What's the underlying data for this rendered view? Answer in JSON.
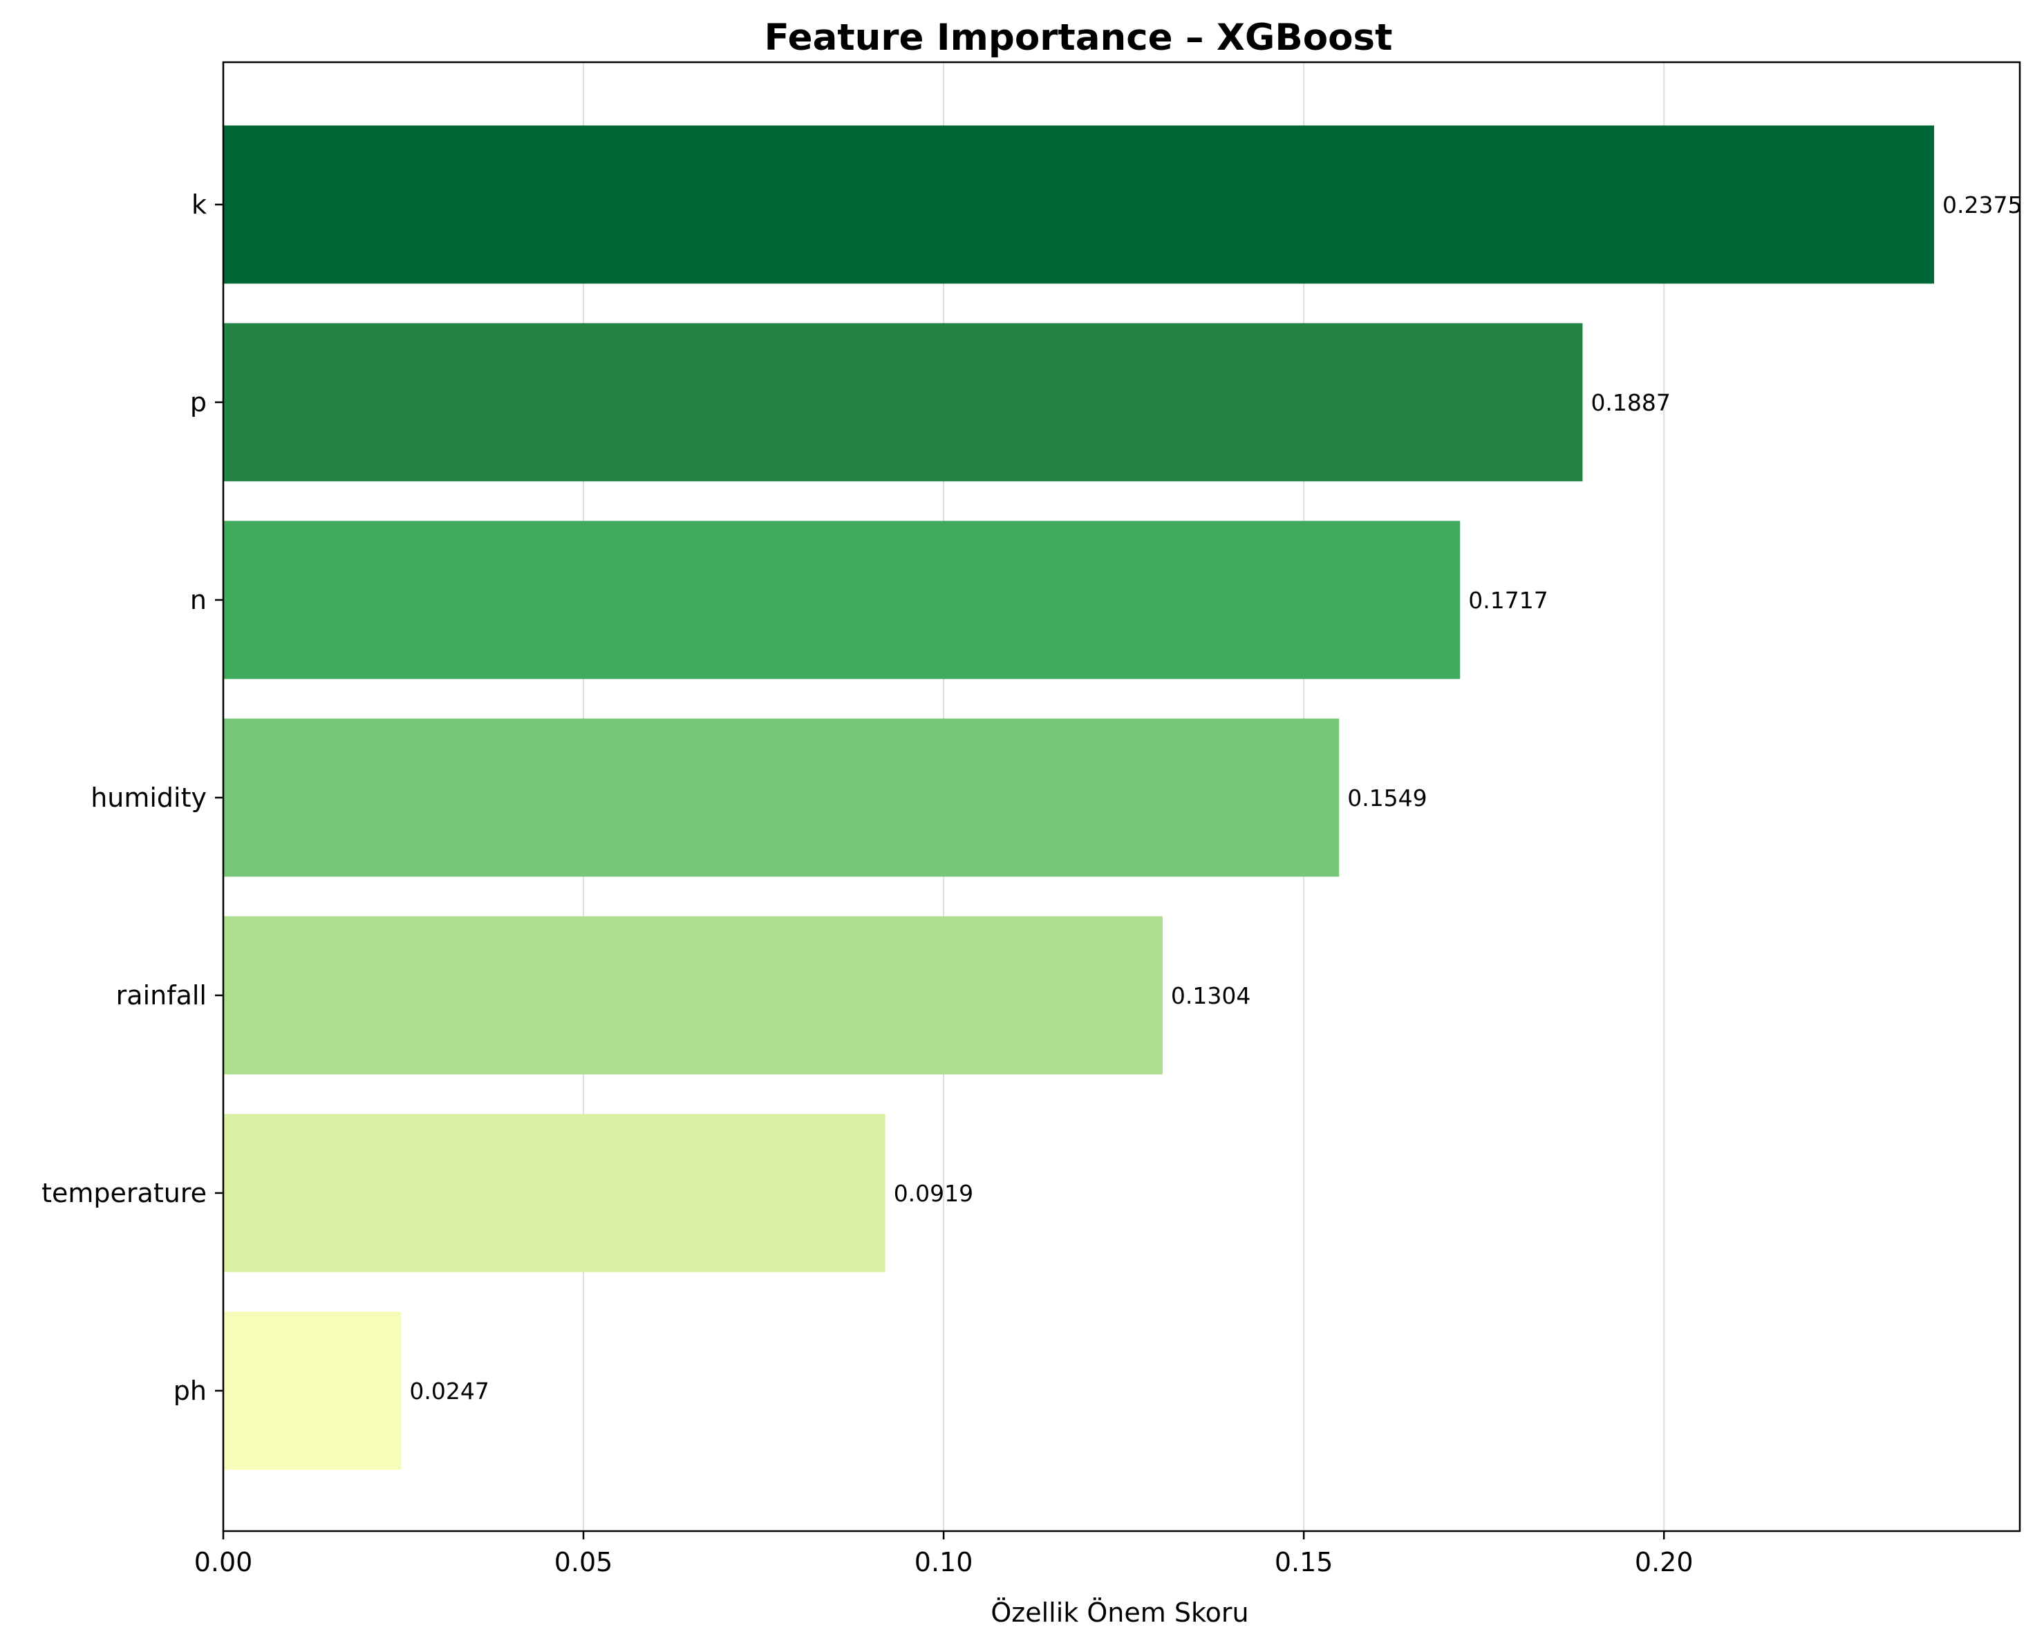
{
  "chart_data": {
    "type": "bar",
    "orientation": "horizontal",
    "title": "Feature Importance – XGBoost",
    "xlabel": "Özellik Önem Skoru",
    "ylabel": "",
    "categories": [
      "k",
      "p",
      "n",
      "humidity",
      "rainfall",
      "temperature",
      "ph"
    ],
    "values": [
      0.2375,
      0.1887,
      0.1717,
      0.1549,
      0.1304,
      0.0919,
      0.0247
    ],
    "value_labels": [
      "0.2375",
      "0.1887",
      "0.1717",
      "0.1549",
      "0.1304",
      "0.0919",
      "0.0247"
    ],
    "bar_colors": [
      "#006837",
      "#238443",
      "#41ab5d",
      "#78c679",
      "#addd8e",
      "#d9f0a3",
      "#f7fcb9"
    ],
    "xlim": [
      0,
      0.2494
    ],
    "xticks": [
      0.0,
      0.05,
      0.1,
      0.15,
      0.2
    ],
    "xtick_labels": [
      "0.00",
      "0.05",
      "0.10",
      "0.15",
      "0.20"
    ],
    "grid": "x-axis vertical lines",
    "legend": "none"
  }
}
